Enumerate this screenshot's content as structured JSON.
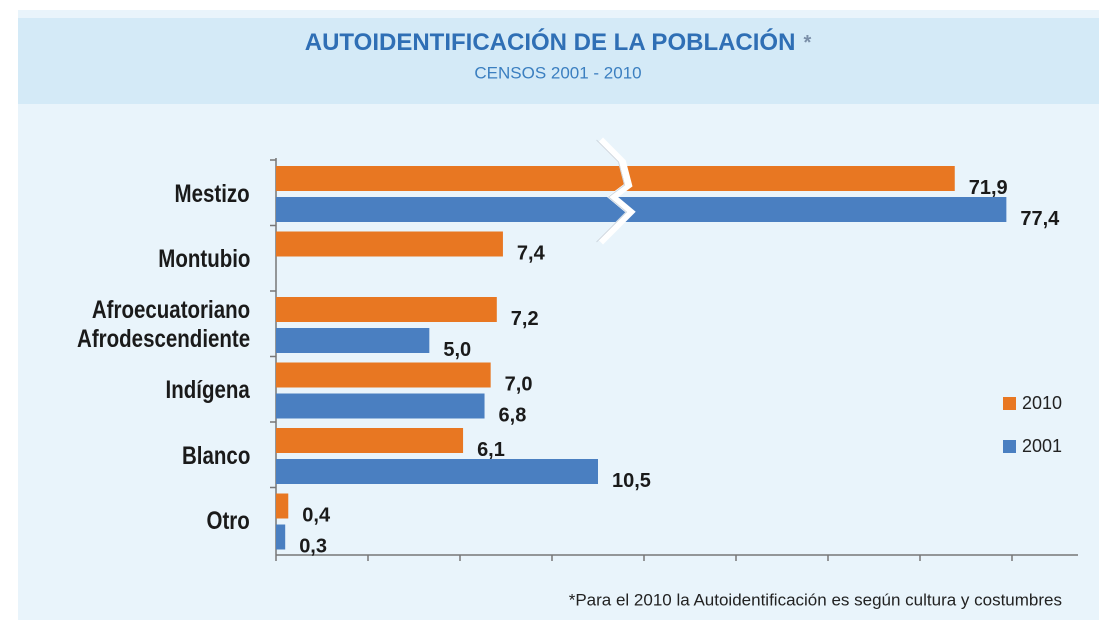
{
  "chart_data": {
    "type": "bar",
    "orientation": "horizontal",
    "title": "AUTOIDENTIFICACIÓN DE LA POBLACIÓN",
    "title_marker": "*",
    "subtitle": "CENSOS 2001 - 2010",
    "footnote": "*Para el 2010 la Autoidentificación es según cultura y costumbres",
    "categories": [
      "Mestizo",
      "Montubio",
      "Afroecuatoriano\nAfrodescendiente",
      "Indígena",
      "Blanco",
      "Otro"
    ],
    "series": [
      {
        "name": "2010",
        "color": "#e87722",
        "values": [
          71.9,
          7.4,
          7.2,
          7.0,
          6.1,
          0.4
        ],
        "value_labels": [
          "71,9",
          "7,4",
          "7,2",
          "7,0",
          "6,1",
          "0,4"
        ]
      },
      {
        "name": "2001",
        "color": "#4a7fc1",
        "values": [
          77.4,
          null,
          5.0,
          6.8,
          10.5,
          0.3
        ],
        "value_labels": [
          "77,4",
          null,
          "5,0",
          "6,8",
          "10,5",
          "0,3"
        ]
      }
    ],
    "xlim": [
      0,
      24
    ],
    "xticks": [
      0,
      3,
      6,
      9,
      12,
      15,
      18,
      21,
      24
    ],
    "x_break": [
      11.3,
      36.5
    ],
    "x_upper_lim": 78,
    "legend": "right"
  }
}
